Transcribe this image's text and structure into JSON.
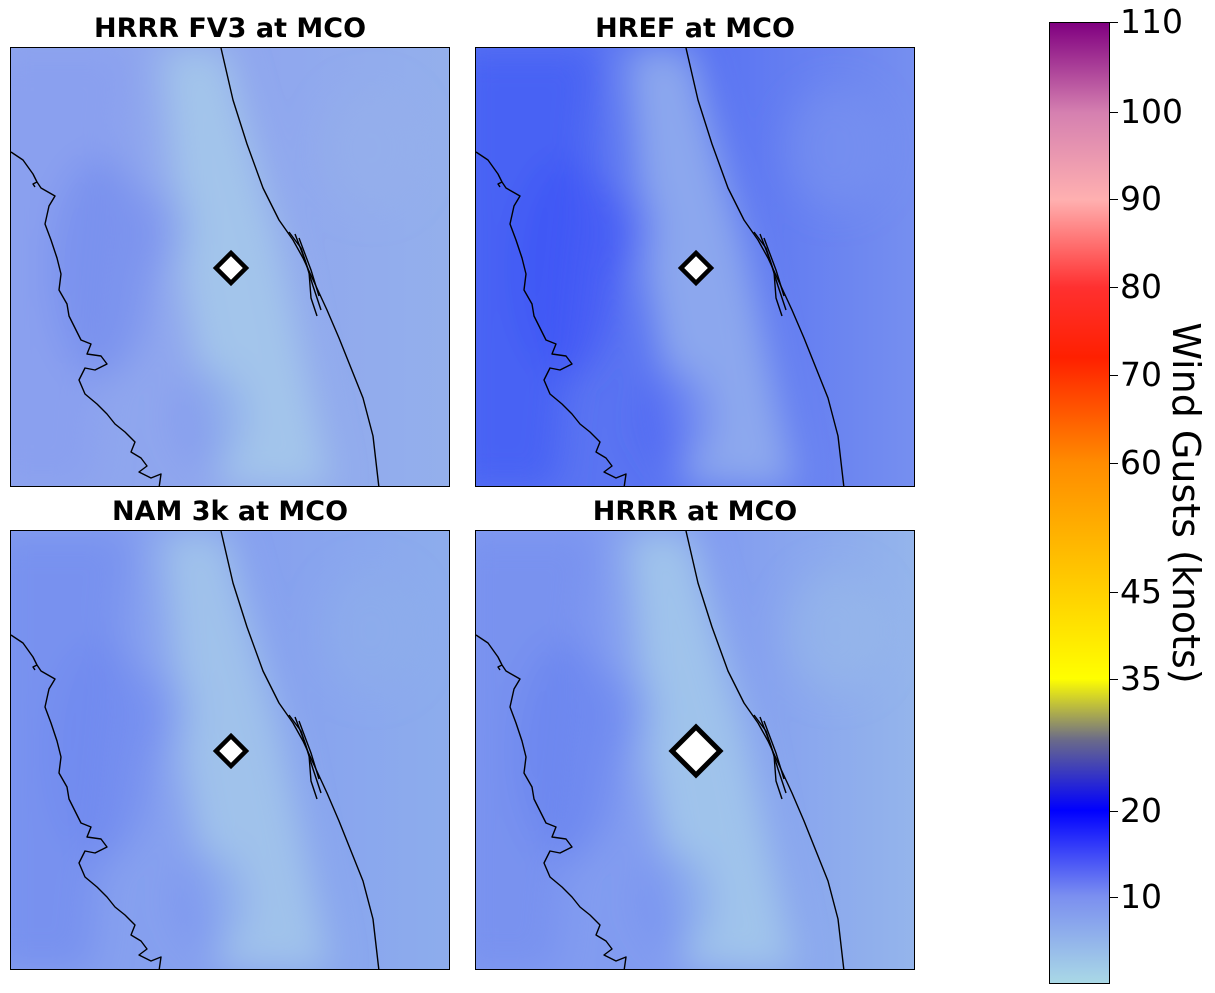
{
  "panels": [
    {
      "id": "hrrr-fv3",
      "title": "HRRR FV3 at MCO",
      "base": "#8fa6ee",
      "light": "#a9cfe9",
      "dark": "#7289ef",
      "left": "#8aa0ef",
      "ocean": "#95b2ec"
    },
    {
      "id": "href",
      "title": "HREF at MCO",
      "base": "#5a74f2",
      "light": "#9cb8ec",
      "dark": "#3c50f6",
      "left": "#4660f4",
      "ocean": "#7d96ef"
    },
    {
      "id": "nam-3k",
      "title": "NAM 3k at MCO",
      "base": "#86a0ef",
      "light": "#a8cde9",
      "dark": "#6c86f0",
      "left": "#7790f0",
      "ocean": "#8fb0ec"
    },
    {
      "id": "hrrr",
      "title": "HRRR at MCO",
      "base": "#829cf0",
      "light": "#aad0e9",
      "dark": "#6680f0",
      "left": "#7891f0",
      "ocean": "#99bbea"
    }
  ],
  "station": "MCO",
  "colorbar": {
    "label": "Wind Gusts (knots)",
    "ticks": [
      "110",
      "100",
      "90",
      "80",
      "70",
      "60",
      "45",
      "35",
      "20",
      "10"
    ],
    "colors": {
      "c0": "#a9d8e6",
      "c10": "#7b8ff0",
      "c20": "#0000ff",
      "c28": "#6a6a8a",
      "c35": "#ffff00",
      "c45": "#ffd000",
      "c60": "#ff8c00",
      "c70": "#ff2000",
      "c80": "#ff3030",
      "c90": "#ffb0b0",
      "c100": "#d580b0",
      "c110": "#800080"
    }
  }
}
